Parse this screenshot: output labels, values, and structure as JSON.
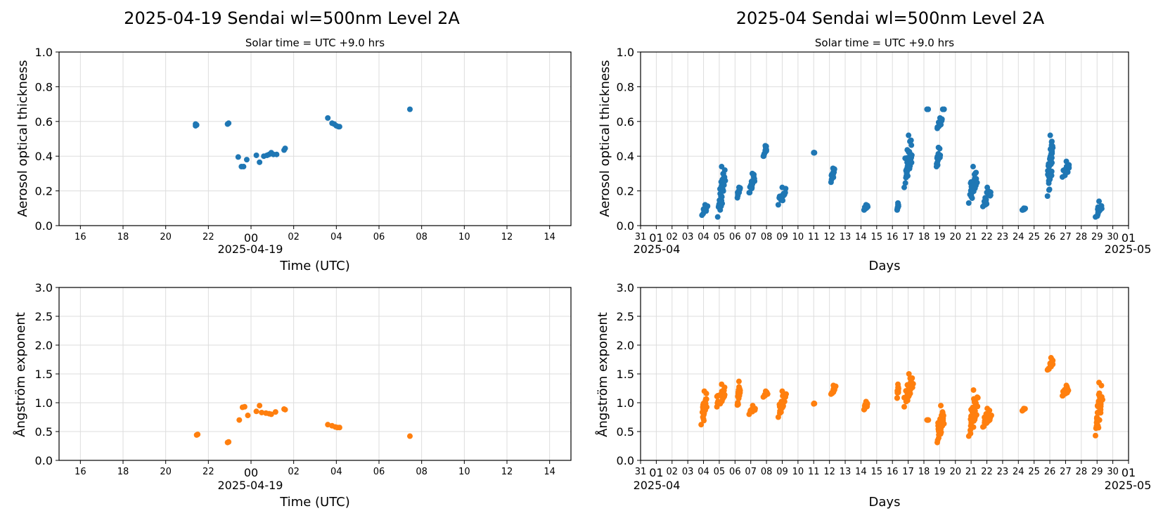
{
  "colors": {
    "aot": "#1f77b4",
    "angstrom": "#ff7f0e",
    "grid": "#dddddd"
  },
  "left": {
    "title": "2025-04-19  Sendai  wl=500nm  Level 2A",
    "subtitle": "Solar time = UTC +9.0 hrs",
    "xlabel": "Time (UTC)",
    "date_label": "2025-04-19",
    "x_ticks": [
      {
        "h": -8,
        "label": "16"
      },
      {
        "h": -6,
        "label": "18"
      },
      {
        "h": -4,
        "label": "20"
      },
      {
        "h": -2,
        "label": "22"
      },
      {
        "h": 0,
        "label": "00",
        "major": true
      },
      {
        "h": 2,
        "label": "02"
      },
      {
        "h": 4,
        "label": "04"
      },
      {
        "h": 6,
        "label": "06"
      },
      {
        "h": 8,
        "label": "08"
      },
      {
        "h": 10,
        "label": "10"
      },
      {
        "h": 12,
        "label": "12"
      },
      {
        "h": 14,
        "label": "14"
      }
    ]
  },
  "right": {
    "title": "2025-04  Sendai  wl=500nm  Level 2A",
    "subtitle": "Solar time = UTC +9.0 hrs",
    "xlabel": "Days",
    "start_label": "2025-04",
    "end_label": "2025-05",
    "x_ticks": [
      {
        "d": 0,
        "label": "31"
      },
      {
        "d": 1,
        "label": "01",
        "major": true
      },
      {
        "d": 2,
        "label": "02"
      },
      {
        "d": 3,
        "label": "03"
      },
      {
        "d": 4,
        "label": "04"
      },
      {
        "d": 5,
        "label": "05"
      },
      {
        "d": 6,
        "label": "06"
      },
      {
        "d": 7,
        "label": "07"
      },
      {
        "d": 8,
        "label": "08"
      },
      {
        "d": 9,
        "label": "09"
      },
      {
        "d": 10,
        "label": "10"
      },
      {
        "d": 11,
        "label": "11"
      },
      {
        "d": 12,
        "label": "12"
      },
      {
        "d": 13,
        "label": "13"
      },
      {
        "d": 14,
        "label": "14"
      },
      {
        "d": 15,
        "label": "15"
      },
      {
        "d": 16,
        "label": "16"
      },
      {
        "d": 17,
        "label": "17"
      },
      {
        "d": 18,
        "label": "18"
      },
      {
        "d": 19,
        "label": "19"
      },
      {
        "d": 20,
        "label": "20"
      },
      {
        "d": 21,
        "label": "21"
      },
      {
        "d": 22,
        "label": "22"
      },
      {
        "d": 23,
        "label": "23"
      },
      {
        "d": 24,
        "label": "24"
      },
      {
        "d": 25,
        "label": "25"
      },
      {
        "d": 26,
        "label": "26"
      },
      {
        "d": 27,
        "label": "27"
      },
      {
        "d": 28,
        "label": "28"
      },
      {
        "d": 29,
        "label": "29"
      },
      {
        "d": 30,
        "label": "30"
      },
      {
        "d": 31,
        "label": "01",
        "major": true
      }
    ]
  },
  "chart_data": [
    {
      "type": "scatter",
      "panel": "top-left",
      "ylabel": "Aerosol optical thickness",
      "xlim": [
        -9,
        15
      ],
      "ylim": [
        0,
        1.0
      ],
      "yticks": [
        0.0,
        0.2,
        0.4,
        0.6,
        0.8,
        1.0
      ],
      "grid": true,
      "points": [
        [
          -2.6,
          0.575
        ],
        [
          -2.6,
          0.585
        ],
        [
          -2.55,
          0.58
        ],
        [
          -1.1,
          0.585
        ],
        [
          -1.05,
          0.59
        ],
        [
          -0.6,
          0.395
        ],
        [
          -0.45,
          0.34
        ],
        [
          -0.35,
          0.34
        ],
        [
          -0.2,
          0.38
        ],
        [
          0.25,
          0.405
        ],
        [
          0.4,
          0.365
        ],
        [
          0.6,
          0.4
        ],
        [
          0.75,
          0.405
        ],
        [
          0.85,
          0.41
        ],
        [
          0.95,
          0.42
        ],
        [
          1.05,
          0.41
        ],
        [
          1.2,
          0.41
        ],
        [
          1.55,
          0.435
        ],
        [
          1.6,
          0.445
        ],
        [
          3.6,
          0.62
        ],
        [
          3.8,
          0.59
        ],
        [
          3.9,
          0.585
        ],
        [
          4.0,
          0.575
        ],
        [
          4.1,
          0.57
        ],
        [
          4.15,
          0.57
        ],
        [
          7.45,
          0.67
        ]
      ]
    },
    {
      "type": "scatter",
      "panel": "top-right",
      "ylabel": "Aerosol optical thickness",
      "xlim": [
        0,
        31
      ],
      "ylim": [
        0,
        1.0
      ],
      "yticks": [
        0.0,
        0.2,
        0.4,
        0.6,
        0.8,
        1.0
      ],
      "grid": true,
      "clusters": [
        {
          "d": [
            3.9,
            4.3
          ],
          "y": [
            0.06,
            0.12
          ]
        },
        {
          "d": [
            4.9,
            5.4
          ],
          "y": [
            0.05,
            0.34
          ]
        },
        {
          "d": [
            6.15,
            6.35
          ],
          "y": [
            0.16,
            0.22
          ]
        },
        {
          "d": [
            6.9,
            7.3
          ],
          "y": [
            0.19,
            0.3
          ]
        },
        {
          "d": [
            7.8,
            8.05
          ],
          "y": [
            0.4,
            0.46
          ]
        },
        {
          "d": [
            8.75,
            9.25
          ],
          "y": [
            0.12,
            0.22
          ]
        },
        {
          "d": [
            11.0,
            11.05
          ],
          "y": [
            0.42,
            0.42
          ]
        },
        {
          "d": [
            12.1,
            12.35
          ],
          "y": [
            0.25,
            0.33
          ]
        },
        {
          "d": [
            14.2,
            14.45
          ],
          "y": [
            0.09,
            0.12
          ]
        },
        {
          "d": [
            16.3,
            16.4
          ],
          "y": [
            0.09,
            0.13
          ]
        },
        {
          "d": [
            16.75,
            17.3
          ],
          "y": [
            0.22,
            0.52
          ]
        },
        {
          "d": [
            18.2,
            18.3
          ],
          "y": [
            0.67,
            0.67
          ]
        },
        {
          "d": [
            18.8,
            19.05
          ],
          "y": [
            0.34,
            0.45
          ]
        },
        {
          "d": [
            18.85,
            19.2
          ],
          "y": [
            0.56,
            0.62
          ]
        },
        {
          "d": [
            19.2,
            19.3
          ],
          "y": [
            0.67,
            0.67
          ]
        },
        {
          "d": [
            20.85,
            21.4
          ],
          "y": [
            0.13,
            0.34
          ]
        },
        {
          "d": [
            21.75,
            22.3
          ],
          "y": [
            0.11,
            0.22
          ]
        },
        {
          "d": [
            24.25,
            24.45
          ],
          "y": [
            0.09,
            0.1
          ]
        },
        {
          "d": [
            25.85,
            26.2
          ],
          "y": [
            0.17,
            0.52
          ]
        },
        {
          "d": [
            26.8,
            27.3
          ],
          "y": [
            0.28,
            0.37
          ]
        },
        {
          "d": [
            28.9,
            29.35
          ],
          "y": [
            0.05,
            0.14
          ]
        }
      ]
    },
    {
      "type": "scatter",
      "panel": "bottom-left",
      "ylabel": "Ångström exponent",
      "xlim": [
        -9,
        15
      ],
      "ylim": [
        0,
        3.0
      ],
      "yticks": [
        0.0,
        0.5,
        1.0,
        1.5,
        2.0,
        2.5,
        3.0
      ],
      "grid": true,
      "points": [
        [
          -2.55,
          0.44
        ],
        [
          -2.5,
          0.45
        ],
        [
          -1.1,
          0.31
        ],
        [
          -1.05,
          0.32
        ],
        [
          -0.55,
          0.7
        ],
        [
          -0.4,
          0.92
        ],
        [
          -0.3,
          0.93
        ],
        [
          -0.15,
          0.78
        ],
        [
          0.25,
          0.85
        ],
        [
          0.4,
          0.95
        ],
        [
          0.5,
          0.83
        ],
        [
          0.7,
          0.82
        ],
        [
          0.85,
          0.81
        ],
        [
          0.95,
          0.8
        ],
        [
          1.15,
          0.84
        ],
        [
          1.55,
          0.89
        ],
        [
          1.6,
          0.88
        ],
        [
          3.6,
          0.62
        ],
        [
          3.8,
          0.6
        ],
        [
          3.95,
          0.58
        ],
        [
          4.05,
          0.57
        ],
        [
          4.15,
          0.57
        ],
        [
          7.45,
          0.42
        ]
      ]
    },
    {
      "type": "scatter",
      "panel": "bottom-right",
      "ylabel": "Ångström exponent",
      "xlim": [
        0,
        31
      ],
      "ylim": [
        0,
        3.0
      ],
      "yticks": [
        0.0,
        0.5,
        1.0,
        1.5,
        2.0,
        2.5,
        3.0
      ],
      "grid": true,
      "clusters": [
        {
          "d": [
            3.85,
            4.25
          ],
          "y": [
            0.62,
            1.2
          ]
        },
        {
          "d": [
            4.85,
            5.45
          ],
          "y": [
            0.93,
            1.32
          ]
        },
        {
          "d": [
            6.15,
            6.35
          ],
          "y": [
            0.96,
            1.37
          ]
        },
        {
          "d": [
            6.9,
            7.35
          ],
          "y": [
            0.8,
            0.95
          ]
        },
        {
          "d": [
            7.8,
            8.1
          ],
          "y": [
            1.1,
            1.2
          ]
        },
        {
          "d": [
            8.75,
            9.25
          ],
          "y": [
            0.75,
            1.2
          ]
        },
        {
          "d": [
            11.0,
            11.05
          ],
          "y": [
            0.98,
            0.99
          ]
        },
        {
          "d": [
            12.1,
            12.4
          ],
          "y": [
            1.15,
            1.3
          ]
        },
        {
          "d": [
            14.2,
            14.45
          ],
          "y": [
            0.88,
            1.02
          ]
        },
        {
          "d": [
            16.3,
            16.4
          ],
          "y": [
            1.08,
            1.32
          ]
        },
        {
          "d": [
            16.75,
            17.35
          ],
          "y": [
            0.93,
            1.5
          ]
        },
        {
          "d": [
            18.2,
            18.3
          ],
          "y": [
            0.7,
            0.7
          ]
        },
        {
          "d": [
            18.85,
            19.3
          ],
          "y": [
            0.31,
            0.95
          ]
        },
        {
          "d": [
            20.85,
            21.45
          ],
          "y": [
            0.42,
            1.22
          ]
        },
        {
          "d": [
            21.75,
            22.3
          ],
          "y": [
            0.58,
            0.9
          ]
        },
        {
          "d": [
            24.25,
            24.45
          ],
          "y": [
            0.86,
            0.9
          ]
        },
        {
          "d": [
            25.85,
            26.3
          ],
          "y": [
            1.57,
            1.78
          ]
        },
        {
          "d": [
            26.8,
            27.3
          ],
          "y": [
            1.12,
            1.3
          ]
        },
        {
          "d": [
            28.9,
            29.35
          ],
          "y": [
            0.43,
            1.35
          ]
        }
      ]
    }
  ]
}
